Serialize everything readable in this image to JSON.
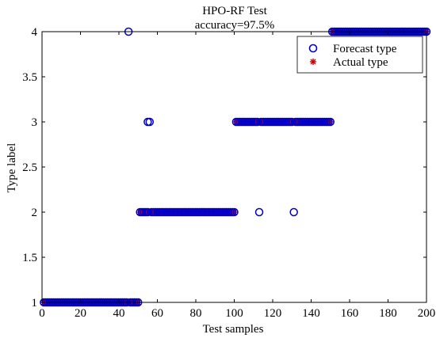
{
  "chart_data": {
    "type": "scatter",
    "title": "HPO-RF Test",
    "subtitle": "accuracy=97.5%",
    "xlabel": "Test samples",
    "ylabel": "Type label",
    "xlim": [
      0,
      200
    ],
    "ylim": [
      1,
      4
    ],
    "x_ticks": [
      0,
      20,
      40,
      60,
      80,
      100,
      120,
      140,
      160,
      180,
      200
    ],
    "y_ticks": [
      1,
      1.5,
      2,
      2.5,
      3,
      3.5,
      4
    ],
    "x_tick_labels": [
      "0",
      "20",
      "40",
      "60",
      "80",
      "100",
      "120",
      "140",
      "160",
      "180",
      "200"
    ],
    "y_tick_labels": [
      "1",
      "1.5",
      "2",
      "2.5",
      "3",
      "3.5",
      "4"
    ],
    "grid": false,
    "legend_position": "top-right",
    "series": [
      {
        "name": "Forecast type",
        "marker": "circle",
        "color": "#0000cc",
        "segments": [
          {
            "x_start": 1,
            "x_end": 44,
            "y": 1
          },
          {
            "x_start": 46,
            "x_end": 50,
            "y": 1
          },
          {
            "x_start": 51,
            "x_end": 55,
            "y": 2
          },
          {
            "x_start": 57,
            "x_end": 100,
            "y": 2
          },
          {
            "x_start": 101,
            "x_end": 112,
            "y": 3
          },
          {
            "x_start": 114,
            "x_end": 130,
            "y": 3
          },
          {
            "x_start": 132,
            "x_end": 150,
            "y": 3
          },
          {
            "x_start": 151,
            "x_end": 200,
            "y": 4
          }
        ],
        "points": [
          {
            "x": 45,
            "y": 4
          },
          {
            "x": 55,
            "y": 3
          },
          {
            "x": 56,
            "y": 3
          },
          {
            "x": 113,
            "y": 2
          },
          {
            "x": 131,
            "y": 2
          }
        ]
      },
      {
        "name": "Actual type",
        "marker": "asterisk",
        "color": "#cc0000",
        "segments": [
          {
            "x_start": 1,
            "x_end": 50,
            "y": 1
          },
          {
            "x_start": 51,
            "x_end": 100,
            "y": 2
          },
          {
            "x_start": 101,
            "x_end": 150,
            "y": 3
          },
          {
            "x_start": 151,
            "x_end": 200,
            "y": 4
          }
        ]
      }
    ]
  }
}
